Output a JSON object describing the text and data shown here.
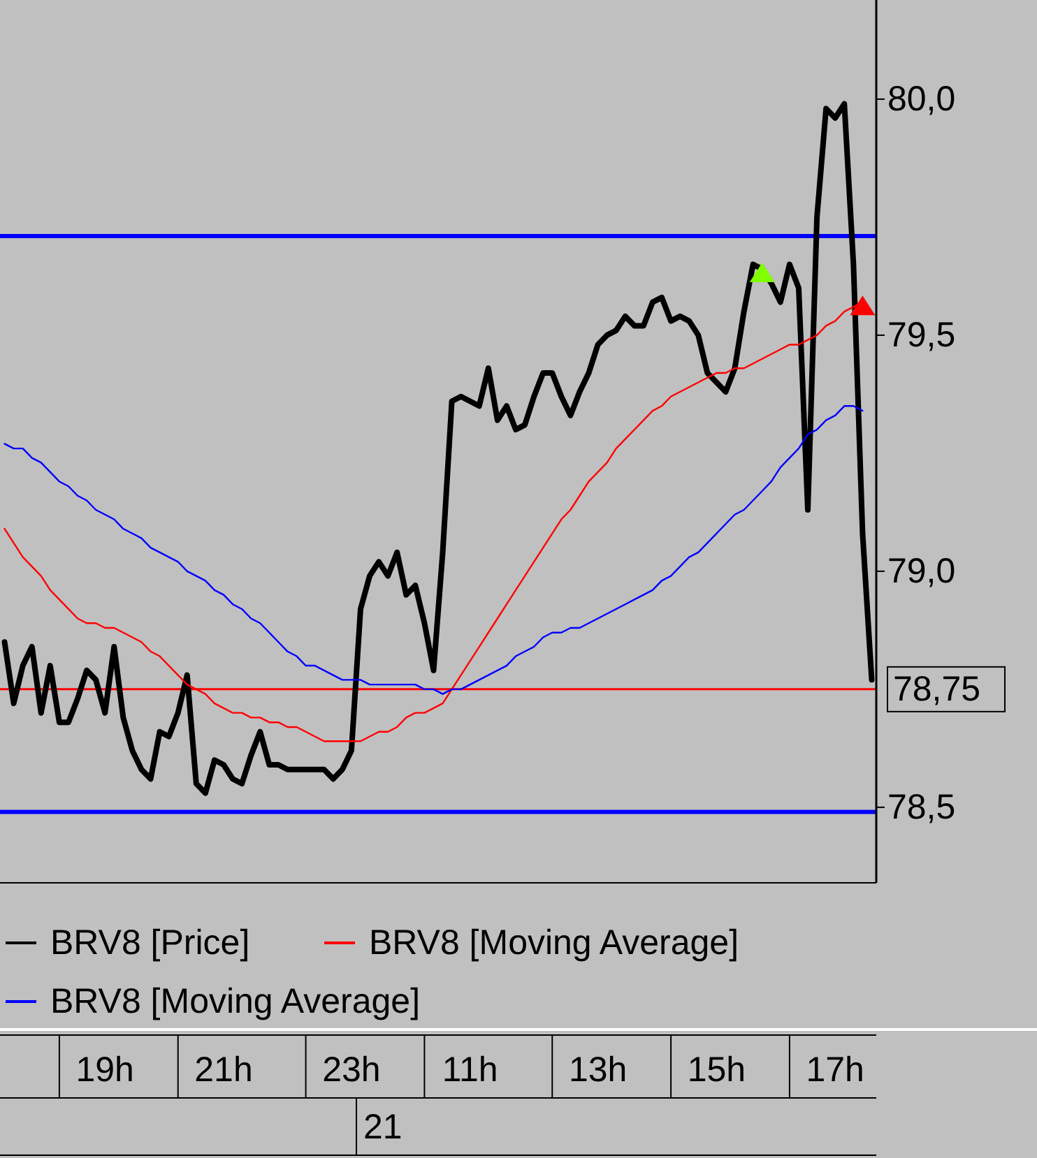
{
  "chart_data": {
    "type": "line",
    "categories": [
      null,
      null,
      null,
      null,
      null,
      null,
      null,
      null,
      null,
      null,
      null,
      "19h",
      null,
      null,
      null,
      null,
      null,
      null,
      null,
      null,
      null,
      null,
      null,
      null,
      "21h",
      null,
      null,
      null,
      null,
      null,
      null,
      null,
      null,
      null,
      null,
      null,
      null,
      null,
      "23h",
      null,
      null,
      null,
      null,
      null,
      null,
      null,
      null,
      null,
      null,
      null,
      null,
      "11h",
      null,
      null,
      null,
      null,
      null,
      null,
      null,
      null,
      null,
      null,
      null,
      null,
      null,
      "13h",
      null,
      null,
      null,
      null,
      null,
      null,
      null,
      null,
      null,
      null,
      null,
      null,
      "15h",
      null,
      null,
      null,
      null,
      null,
      null,
      null,
      null,
      null,
      null,
      null,
      null,
      "17h",
      null,
      null,
      null,
      null
    ],
    "ylim": [
      78.34,
      80.21
    ],
    "yticks": [
      {
        "value": 78.5,
        "label": "78,5"
      },
      {
        "value": 79,
        "label": "79,0"
      },
      {
        "value": 79.5,
        "label": "79,5"
      },
      {
        "value": 80,
        "label": "80,0"
      }
    ],
    "legend": "bottom",
    "annotations": [
      "21"
    ],
    "ref_lines": [
      {
        "axis": "y",
        "value": 79.71,
        "color": "#0000ff"
      },
      {
        "axis": "y",
        "value": 78.49,
        "color": "#0000ff"
      },
      {
        "axis": "y",
        "value": 78.75,
        "label": "78,75",
        "color": "#ff0000"
      }
    ],
    "series": [
      {
        "name": "BRV8 [Price]",
        "color": "#000000",
        "values": [
          78.85,
          78.72,
          78.8,
          78.84,
          78.7,
          78.8,
          78.68,
          78.68,
          78.73,
          78.79,
          78.77,
          78.7,
          78.84,
          78.69,
          78.62,
          78.58,
          78.56,
          78.66,
          78.65,
          78.7,
          78.78,
          78.55,
          78.53,
          78.6,
          78.59,
          78.56,
          78.55,
          78.61,
          78.66,
          78.59,
          78.59,
          78.58,
          78.58,
          78.58,
          78.58,
          78.58,
          78.56,
          78.58,
          78.62,
          78.92,
          78.99,
          79.02,
          78.99,
          79.04,
          78.95,
          78.97,
          78.89,
          78.79,
          79.04,
          79.36,
          79.37,
          79.36,
          79.35,
          79.43,
          79.32,
          79.35,
          79.3,
          79.31,
          79.37,
          79.42,
          79.42,
          79.37,
          79.33,
          79.38,
          79.42,
          79.48,
          79.5,
          79.51,
          79.54,
          79.52,
          79.52,
          79.57,
          79.58,
          79.53,
          79.54,
          79.53,
          79.5,
          79.42,
          79.4,
          79.38,
          79.43,
          79.55,
          79.65,
          79.64,
          79.61,
          79.57,
          79.65,
          79.6,
          79.13,
          79.75,
          79.98,
          79.96,
          79.99,
          79.65,
          79.08,
          78.77
        ]
      },
      {
        "name": "BRV8 [Moving Average]",
        "color": "#ff0000",
        "values": [
          79.09,
          79.06,
          79.03,
          79.01,
          78.99,
          78.96,
          78.94,
          78.92,
          78.9,
          78.89,
          78.89,
          78.88,
          78.88,
          78.87,
          78.86,
          78.85,
          78.83,
          78.82,
          78.8,
          78.78,
          78.76,
          78.75,
          78.74,
          78.72,
          78.71,
          78.7,
          78.7,
          78.69,
          78.69,
          78.68,
          78.68,
          78.67,
          78.67,
          78.66,
          78.65,
          78.64,
          78.64,
          78.64,
          78.64,
          78.64,
          78.65,
          78.66,
          78.66,
          78.67,
          78.69,
          78.7,
          78.7,
          78.71,
          78.72,
          78.75,
          78.78,
          78.81,
          78.84,
          78.87,
          78.9,
          78.93,
          78.96,
          78.99,
          79.02,
          79.05,
          79.08,
          79.11,
          79.13,
          79.16,
          79.19,
          79.21,
          79.23,
          79.26,
          79.28,
          79.3,
          79.32,
          79.34,
          79.35,
          79.37,
          79.38,
          79.39,
          79.4,
          79.41,
          79.42,
          79.42,
          79.43,
          79.43,
          79.44,
          79.45,
          79.46,
          79.47,
          79.48,
          79.48,
          79.49,
          79.5,
          79.52,
          79.53,
          79.55,
          79.56,
          79.57,
          null
        ]
      },
      {
        "name": "BRV8 [Moving Average]",
        "color": "#0000ff",
        "values": [
          79.27,
          79.26,
          79.26,
          79.24,
          79.23,
          79.21,
          79.19,
          79.18,
          79.16,
          79.15,
          79.13,
          79.12,
          79.11,
          79.09,
          79.08,
          79.07,
          79.05,
          79.04,
          79.03,
          79.02,
          79.0,
          78.99,
          78.98,
          78.96,
          78.95,
          78.93,
          78.92,
          78.9,
          78.89,
          78.87,
          78.85,
          78.83,
          78.82,
          78.8,
          78.8,
          78.79,
          78.78,
          78.77,
          78.77,
          78.77,
          78.76,
          78.76,
          78.76,
          78.76,
          78.76,
          78.76,
          78.75,
          78.75,
          78.74,
          78.75,
          78.75,
          78.76,
          78.77,
          78.78,
          78.79,
          78.8,
          78.82,
          78.83,
          78.84,
          78.86,
          78.87,
          78.87,
          78.88,
          78.88,
          78.89,
          78.9,
          78.91,
          78.92,
          78.93,
          78.94,
          78.95,
          78.96,
          78.98,
          78.99,
          79.01,
          79.03,
          79.04,
          79.06,
          79.08,
          79.1,
          79.12,
          79.13,
          79.15,
          79.17,
          79.19,
          79.22,
          79.24,
          79.26,
          79.29,
          79.3,
          79.32,
          79.33,
          79.35,
          79.35,
          79.34,
          null
        ]
      },
      {
        "type": "scatter",
        "marker": "triangle",
        "color": "#80ff00",
        "values": [
          null,
          null,
          null,
          null,
          null,
          null,
          null,
          null,
          null,
          null,
          null,
          null,
          null,
          null,
          null,
          null,
          null,
          null,
          null,
          null,
          null,
          null,
          null,
          null,
          null,
          null,
          null,
          null,
          null,
          null,
          null,
          null,
          null,
          null,
          null,
          null,
          null,
          null,
          null,
          null,
          null,
          null,
          null,
          null,
          null,
          null,
          null,
          null,
          null,
          null,
          null,
          null,
          null,
          null,
          null,
          null,
          null,
          null,
          null,
          null,
          null,
          null,
          null,
          null,
          null,
          null,
          null,
          null,
          null,
          null,
          null,
          null,
          null,
          null,
          null,
          null,
          null,
          null,
          null,
          null,
          null,
          null,
          null,
          79.63,
          null,
          null,
          null,
          null,
          null,
          null,
          null,
          null,
          null,
          null,
          null,
          null
        ]
      },
      {
        "type": "scatter",
        "marker": "triangle",
        "color": "#ff0000",
        "values": [
          null,
          null,
          null,
          null,
          null,
          null,
          null,
          null,
          null,
          null,
          null,
          null,
          null,
          null,
          null,
          null,
          null,
          null,
          null,
          null,
          null,
          null,
          null,
          null,
          null,
          null,
          null,
          null,
          null,
          null,
          null,
          null,
          null,
          null,
          null,
          null,
          null,
          null,
          null,
          null,
          null,
          null,
          null,
          null,
          null,
          null,
          null,
          null,
          null,
          null,
          null,
          null,
          null,
          null,
          null,
          null,
          null,
          null,
          null,
          null,
          null,
          null,
          null,
          null,
          null,
          null,
          null,
          null,
          null,
          null,
          null,
          null,
          null,
          null,
          null,
          null,
          null,
          null,
          null,
          null,
          null,
          null,
          null,
          null,
          null,
          null,
          null,
          null,
          null,
          null,
          null,
          null,
          null,
          null,
          79.56,
          null
        ]
      }
    ]
  }
}
